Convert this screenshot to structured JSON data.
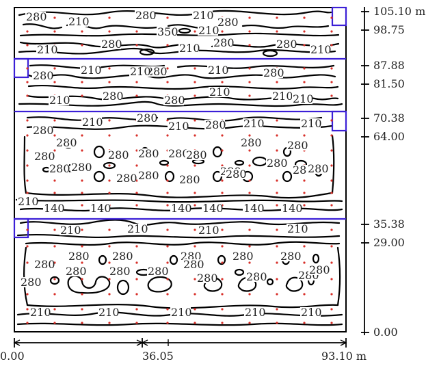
{
  "colors": {
    "contour": "#000000",
    "frame": "#000000",
    "luminaire_row": "#3b1fd6",
    "measure_point": "#d8302a",
    "label_text": "#222222"
  },
  "right_scale": {
    "unit": "m",
    "marks": [
      "105.10 m",
      "98.75",
      "87.88",
      "81.50",
      "70.38",
      "64.00",
      "35.38",
      "29.00",
      "0.00"
    ]
  },
  "bottom_scale": {
    "marks": [
      "0.00",
      "36.05",
      "93.10 m"
    ]
  },
  "isoline_values": [
    "140",
    "210",
    "280",
    "350"
  ],
  "isoline_labels": {
    "band1": [
      "280",
      "210",
      "280",
      "350",
      "210",
      "280",
      "210",
      "210",
      "280",
      "210",
      "280",
      "280",
      "210"
    ],
    "band2": [
      "280",
      "210",
      "280",
      "210",
      "280",
      "280",
      "210",
      "280",
      "210",
      "210",
      "210",
      "210"
    ],
    "band3": [
      "280",
      "210",
      "280",
      "210",
      "280",
      "210",
      "210",
      "280",
      "280",
      "280",
      "280",
      "280",
      "280",
      "280",
      "280",
      "280",
      "280",
      "280",
      "280",
      "280",
      "280",
      "280",
      "280",
      "280",
      "280"
    ],
    "band4": [
      "210",
      "140",
      "140",
      "140",
      "140",
      "140",
      "140",
      "210",
      "210",
      "210",
      "210"
    ],
    "band5": [
      "280",
      "280",
      "280",
      "280",
      "280",
      "280",
      "280",
      "280",
      "280",
      "280",
      "280",
      "280",
      "280",
      "280",
      "280",
      "210",
      "210",
      "210",
      "210",
      "210"
    ]
  }
}
